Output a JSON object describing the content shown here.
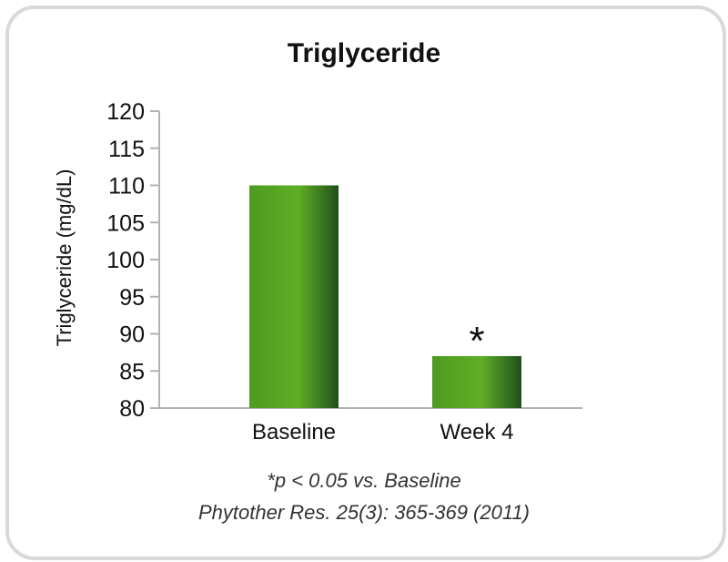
{
  "chart_data": {
    "type": "bar",
    "title": "Triglyceride",
    "ylabel": "Triglyceride (mg/dL)",
    "xlabel": "",
    "categories": [
      "Baseline",
      "Week 4"
    ],
    "values": [
      110,
      87
    ],
    "ylim": [
      80,
      120
    ],
    "yticks": [
      80,
      85,
      90,
      95,
      100,
      105,
      110,
      115,
      120
    ],
    "annotations": [
      {
        "category": "Week 4",
        "text": "*"
      }
    ],
    "grid": false,
    "bar_colors": [
      "#2e7d1e",
      "#5aa324",
      "#1f4f1a"
    ]
  },
  "footnotes": {
    "significance": "*p < 0.05 vs. Baseline",
    "reference": "Phytother Res. 25(3): 365-369 (2011)"
  }
}
